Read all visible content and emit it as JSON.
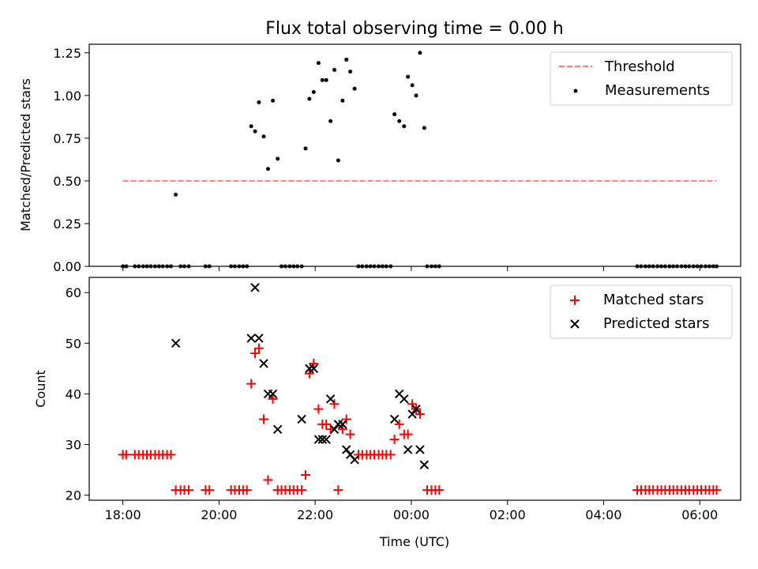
{
  "title": "Flux total observing time = 0.00 h",
  "colors": {
    "threshold": "#ff7f7f",
    "measure": "#000000",
    "matched": "#ff0000",
    "predicted": "#000000"
  },
  "chart_data": [
    {
      "type": "scatter",
      "ylabel": "Matched/Predicted stars",
      "xlim": [
        -0.7,
        12.85
      ],
      "ylim": [
        0,
        1.3
      ],
      "xticks": [
        0,
        2,
        4,
        6,
        8,
        10,
        12
      ],
      "yticks": [
        0,
        0.25,
        0.5,
        0.75,
        1.0,
        1.25
      ],
      "ytick_labels": [
        "0.00",
        "0.25",
        "0.50",
        "0.75",
        "1.00",
        "1.25"
      ],
      "legend_position": "upper right",
      "series": [
        {
          "name": "Threshold",
          "style": "dashed-line",
          "points": [
            [
              0,
              0.5
            ],
            [
              12.35,
              0.5
            ]
          ]
        },
        {
          "name": "Measurements",
          "style": "dot",
          "points": [
            [
              0,
              0
            ],
            [
              0.07,
              0
            ],
            [
              0.25,
              0
            ],
            [
              0.33,
              0
            ],
            [
              0.42,
              0
            ],
            [
              0.5,
              0
            ],
            [
              0.58,
              0
            ],
            [
              0.67,
              0
            ],
            [
              0.75,
              0
            ],
            [
              0.83,
              0
            ],
            [
              0.92,
              0
            ],
            [
              1.0,
              0
            ],
            [
              1.1,
              0.42
            ],
            [
              1.2,
              0
            ],
            [
              1.28,
              0
            ],
            [
              1.37,
              0
            ],
            [
              1.72,
              0
            ],
            [
              1.8,
              0
            ],
            [
              2.25,
              0
            ],
            [
              2.33,
              0
            ],
            [
              2.42,
              0
            ],
            [
              2.5,
              0
            ],
            [
              2.58,
              0
            ],
            [
              2.67,
              0.82
            ],
            [
              2.75,
              0.79
            ],
            [
              2.83,
              0.96
            ],
            [
              2.93,
              0.76
            ],
            [
              3.02,
              0.57
            ],
            [
              3.12,
              0.97
            ],
            [
              3.22,
              0.63
            ],
            [
              3.3,
              0
            ],
            [
              3.38,
              0
            ],
            [
              3.47,
              0
            ],
            [
              3.55,
              0
            ],
            [
              3.63,
              0
            ],
            [
              3.72,
              0
            ],
            [
              3.8,
              0.69
            ],
            [
              3.88,
              0.98
            ],
            [
              3.97,
              1.02
            ],
            [
              4.07,
              1.19
            ],
            [
              4.15,
              1.09
            ],
            [
              4.23,
              1.09
            ],
            [
              4.32,
              0.85
            ],
            [
              4.4,
              1.15
            ],
            [
              4.48,
              0.62
            ],
            [
              4.57,
              0.97
            ],
            [
              4.65,
              1.21
            ],
            [
              4.73,
              1.14
            ],
            [
              4.82,
              1.04
            ],
            [
              4.9,
              0
            ],
            [
              4.98,
              0
            ],
            [
              5.07,
              0
            ],
            [
              5.15,
              0
            ],
            [
              5.23,
              0
            ],
            [
              5.32,
              0
            ],
            [
              5.4,
              0
            ],
            [
              5.48,
              0
            ],
            [
              5.57,
              0
            ],
            [
              5.65,
              0.89
            ],
            [
              5.75,
              0.85
            ],
            [
              5.85,
              0.82
            ],
            [
              5.93,
              1.11
            ],
            [
              6.02,
              1.06
            ],
            [
              6.1,
              1.0
            ],
            [
              6.18,
              1.25
            ],
            [
              6.27,
              0.81
            ],
            [
              6.33,
              0
            ],
            [
              6.42,
              0
            ],
            [
              6.5,
              0
            ],
            [
              6.58,
              0
            ],
            [
              10.7,
              0
            ],
            [
              10.78,
              0
            ],
            [
              10.87,
              0
            ],
            [
              10.95,
              0
            ],
            [
              11.03,
              0
            ],
            [
              11.12,
              0
            ],
            [
              11.2,
              0
            ],
            [
              11.28,
              0
            ],
            [
              11.37,
              0
            ],
            [
              11.45,
              0
            ],
            [
              11.53,
              0
            ],
            [
              11.62,
              0
            ],
            [
              11.7,
              0
            ],
            [
              11.78,
              0
            ],
            [
              11.87,
              0
            ],
            [
              11.95,
              0
            ],
            [
              12.03,
              0
            ],
            [
              12.12,
              0
            ],
            [
              12.2,
              0
            ],
            [
              12.28,
              0
            ],
            [
              12.35,
              0
            ]
          ]
        }
      ]
    },
    {
      "type": "scatter",
      "xlabel": "Time (UTC)",
      "ylabel": "Count",
      "xlim": [
        -0.7,
        12.85
      ],
      "ylim": [
        19,
        63
      ],
      "xticks": [
        0,
        2,
        4,
        6,
        8,
        10,
        12
      ],
      "xtick_labels": [
        "18:00",
        "20:00",
        "22:00",
        "00:00",
        "02:00",
        "04:00",
        "06:00"
      ],
      "yticks": [
        20,
        30,
        40,
        50,
        60
      ],
      "ytick_labels": [
        "20",
        "30",
        "40",
        "50",
        "60"
      ],
      "legend_position": "upper right",
      "series": [
        {
          "name": "Matched stars",
          "marker": "plus",
          "points": [
            [
              0,
              28
            ],
            [
              0.07,
              28
            ],
            [
              0.25,
              28
            ],
            [
              0.33,
              28
            ],
            [
              0.42,
              28
            ],
            [
              0.5,
              28
            ],
            [
              0.58,
              28
            ],
            [
              0.67,
              28
            ],
            [
              0.75,
              28
            ],
            [
              0.83,
              28
            ],
            [
              0.92,
              28
            ],
            [
              1.0,
              28
            ],
            [
              1.1,
              21
            ],
            [
              1.2,
              21
            ],
            [
              1.28,
              21
            ],
            [
              1.37,
              21
            ],
            [
              1.72,
              21
            ],
            [
              1.8,
              21
            ],
            [
              2.25,
              21
            ],
            [
              2.33,
              21
            ],
            [
              2.42,
              21
            ],
            [
              2.5,
              21
            ],
            [
              2.58,
              21
            ],
            [
              2.67,
              42
            ],
            [
              2.75,
              48
            ],
            [
              2.83,
              49
            ],
            [
              2.93,
              35
            ],
            [
              3.02,
              23
            ],
            [
              3.12,
              39
            ],
            [
              3.22,
              21
            ],
            [
              3.3,
              21
            ],
            [
              3.38,
              21
            ],
            [
              3.47,
              21
            ],
            [
              3.55,
              21
            ],
            [
              3.63,
              21
            ],
            [
              3.72,
              21
            ],
            [
              3.8,
              24
            ],
            [
              3.88,
              44
            ],
            [
              3.97,
              46
            ],
            [
              4.07,
              37
            ],
            [
              4.15,
              34
            ],
            [
              4.23,
              34
            ],
            [
              4.32,
              33
            ],
            [
              4.4,
              38
            ],
            [
              4.48,
              21
            ],
            [
              4.57,
              33
            ],
            [
              4.65,
              35
            ],
            [
              4.73,
              32
            ],
            [
              4.9,
              28
            ],
            [
              4.98,
              28
            ],
            [
              5.07,
              28
            ],
            [
              5.15,
              28
            ],
            [
              5.23,
              28
            ],
            [
              5.32,
              28
            ],
            [
              5.4,
              28
            ],
            [
              5.48,
              28
            ],
            [
              5.57,
              28
            ],
            [
              5.65,
              31
            ],
            [
              5.75,
              34
            ],
            [
              5.85,
              32
            ],
            [
              5.93,
              32
            ],
            [
              6.02,
              38
            ],
            [
              6.1,
              37
            ],
            [
              6.18,
              36
            ],
            [
              6.33,
              21
            ],
            [
              6.42,
              21
            ],
            [
              6.5,
              21
            ],
            [
              6.58,
              21
            ],
            [
              10.7,
              21
            ],
            [
              10.78,
              21
            ],
            [
              10.87,
              21
            ],
            [
              10.95,
              21
            ],
            [
              11.03,
              21
            ],
            [
              11.12,
              21
            ],
            [
              11.2,
              21
            ],
            [
              11.28,
              21
            ],
            [
              11.37,
              21
            ],
            [
              11.45,
              21
            ],
            [
              11.53,
              21
            ],
            [
              11.62,
              21
            ],
            [
              11.7,
              21
            ],
            [
              11.78,
              21
            ],
            [
              11.87,
              21
            ],
            [
              11.95,
              21
            ],
            [
              12.03,
              21
            ],
            [
              12.12,
              21
            ],
            [
              12.2,
              21
            ],
            [
              12.28,
              21
            ],
            [
              12.35,
              21
            ]
          ]
        },
        {
          "name": "Predicted stars",
          "marker": "x",
          "points": [
            [
              1.1,
              50
            ],
            [
              2.67,
              51
            ],
            [
              2.75,
              61
            ],
            [
              2.83,
              51
            ],
            [
              2.93,
              46
            ],
            [
              3.02,
              40
            ],
            [
              3.12,
              40
            ],
            [
              3.22,
              33
            ],
            [
              3.72,
              35
            ],
            [
              3.88,
              45
            ],
            [
              3.97,
              45
            ],
            [
              4.07,
              31
            ],
            [
              4.15,
              31
            ],
            [
              4.23,
              31
            ],
            [
              4.32,
              39
            ],
            [
              4.4,
              33
            ],
            [
              4.48,
              34
            ],
            [
              4.57,
              34
            ],
            [
              4.65,
              29
            ],
            [
              4.73,
              28
            ],
            [
              4.82,
              27
            ],
            [
              5.65,
              35
            ],
            [
              5.75,
              40
            ],
            [
              5.85,
              39
            ],
            [
              5.93,
              29
            ],
            [
              6.02,
              36
            ],
            [
              6.1,
              37
            ],
            [
              6.18,
              29
            ],
            [
              6.27,
              26
            ]
          ]
        }
      ]
    }
  ]
}
